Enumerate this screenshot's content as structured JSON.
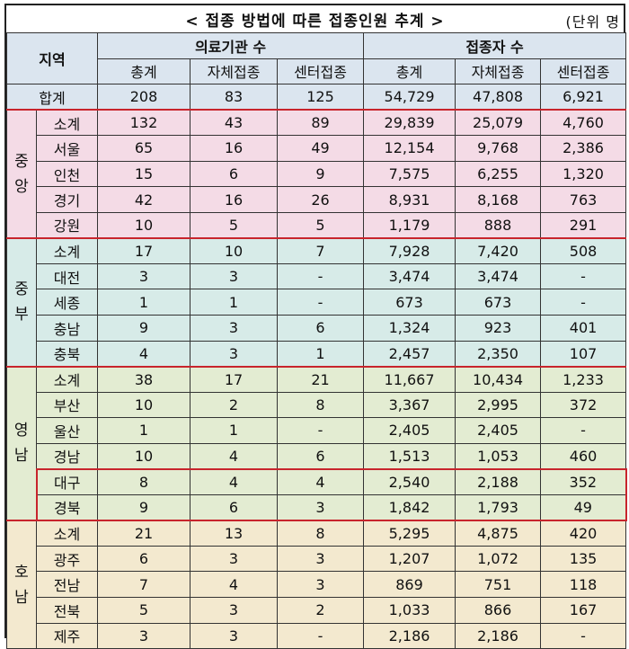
{
  "title": "< 접종 방법에 따른 접종인원 추계 >",
  "unit": "(단위 명",
  "header": {
    "region": "지역",
    "group_institutions": "의료기관 수",
    "group_vaccinated": "접종자 수",
    "sub": [
      "총계",
      "자체접종",
      "센터접종",
      "총계",
      "자체접종",
      "센터접종"
    ]
  },
  "total": {
    "label": "합계",
    "values": [
      "208",
      "83",
      "125",
      "54,729",
      "47,808",
      "6,921"
    ]
  },
  "regions": [
    {
      "name": "중\n앙",
      "rows": [
        {
          "label": "소계",
          "values": [
            "132",
            "43",
            "89",
            "29,839",
            "25,079",
            "4,760"
          ]
        },
        {
          "label": "서울",
          "values": [
            "65",
            "16",
            "49",
            "12,154",
            "9,768",
            "2,386"
          ]
        },
        {
          "label": "인천",
          "values": [
            "15",
            "6",
            "9",
            "7,575",
            "6,255",
            "1,320"
          ]
        },
        {
          "label": "경기",
          "values": [
            "42",
            "16",
            "26",
            "8,931",
            "8,168",
            "763"
          ]
        },
        {
          "label": "강원",
          "values": [
            "10",
            "5",
            "5",
            "1,179",
            "888",
            "291"
          ]
        }
      ]
    },
    {
      "name": "중\n부",
      "rows": [
        {
          "label": "소계",
          "values": [
            "17",
            "10",
            "7",
            "7,928",
            "7,420",
            "508"
          ]
        },
        {
          "label": "대전",
          "values": [
            "3",
            "3",
            "-",
            "3,474",
            "3,474",
            "-"
          ]
        },
        {
          "label": "세종",
          "values": [
            "1",
            "1",
            "-",
            "673",
            "673",
            "-"
          ]
        },
        {
          "label": "충남",
          "values": [
            "9",
            "3",
            "6",
            "1,324",
            "923",
            "401"
          ]
        },
        {
          "label": "충북",
          "values": [
            "4",
            "3",
            "1",
            "2,457",
            "2,350",
            "107"
          ]
        }
      ]
    },
    {
      "name": "영\n남",
      "rows": [
        {
          "label": "소계",
          "values": [
            "38",
            "17",
            "21",
            "11,667",
            "10,434",
            "1,233"
          ]
        },
        {
          "label": "부산",
          "values": [
            "10",
            "2",
            "8",
            "3,367",
            "2,995",
            "372"
          ]
        },
        {
          "label": "울산",
          "values": [
            "1",
            "1",
            "-",
            "2,405",
            "2,405",
            "-"
          ]
        },
        {
          "label": "경남",
          "values": [
            "10",
            "4",
            "6",
            "1,513",
            "1,053",
            "460"
          ]
        },
        {
          "label": "대구",
          "values": [
            "8",
            "4",
            "4",
            "2,540",
            "2,188",
            "352"
          ]
        },
        {
          "label": "경북",
          "values": [
            "9",
            "6",
            "3",
            "1,842",
            "1,793",
            "49"
          ]
        }
      ]
    },
    {
      "name": "호\n남",
      "rows": [
        {
          "label": "소계",
          "values": [
            "21",
            "13",
            "8",
            "5,295",
            "4,875",
            "420"
          ]
        },
        {
          "label": "광주",
          "values": [
            "6",
            "3",
            "3",
            "1,207",
            "1,072",
            "135"
          ]
        },
        {
          "label": "전남",
          "values": [
            "7",
            "4",
            "3",
            "869",
            "751",
            "118"
          ]
        },
        {
          "label": "전북",
          "values": [
            "5",
            "3",
            "2",
            "1,033",
            "866",
            "167"
          ]
        },
        {
          "label": "제주",
          "values": [
            "3",
            "3",
            "-",
            "2,186",
            "2,186",
            "-"
          ]
        }
      ]
    }
  ]
}
